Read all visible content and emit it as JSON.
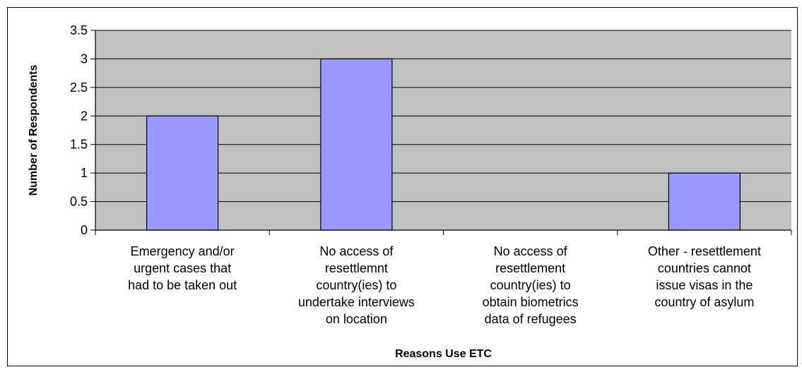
{
  "chart_data": {
    "type": "bar",
    "title": "",
    "xlabel": "Reasons Use ETC",
    "ylabel": "Number of Respondents",
    "ylim": [
      0,
      3.5
    ],
    "yticks": [
      "0",
      "0.5",
      "1",
      "1.5",
      "2",
      "2.5",
      "3",
      "3.5"
    ],
    "grid": true,
    "legend": "none",
    "categories": [
      [
        "Emergency and/or",
        "urgent cases that",
        "had to be taken out"
      ],
      [
        "No access of",
        "resettlemnt",
        "country(ies) to",
        "undertake interviews",
        "on location"
      ],
      [
        "No access of",
        "resettlement",
        "country(ies) to",
        "obtain biometrics",
        "data of refugees"
      ],
      [
        "Other - resettlement",
        "countries cannot",
        "issue visas in the",
        "country of asylum"
      ]
    ],
    "values": [
      2,
      3,
      0,
      1
    ],
    "colors": {
      "plot_background": "#C0C0C0",
      "bar_fill": "#9999FF",
      "bar_stroke": "#000000",
      "gridline": "#000000"
    }
  }
}
